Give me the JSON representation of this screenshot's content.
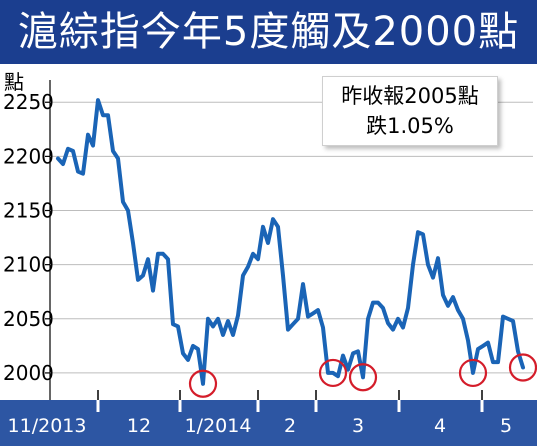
{
  "title": "滬綜指今年5度觸及2000點",
  "unit": "點",
  "annotation": {
    "line1": "昨收報2005點",
    "line2": "跌1.05%"
  },
  "colors": {
    "title_bg": "#1b3e8f",
    "line": "#1a64b6",
    "highlight": "#d41d2a",
    "axis_bar": "#2d56a3"
  },
  "chart_data": {
    "type": "line",
    "title": "滬綜指今年5度觸及2000點",
    "ylabel": "點",
    "ylim": [
      1975,
      2265
    ],
    "yticks": [
      2000,
      2050,
      2100,
      2150,
      2200,
      2250
    ],
    "grid": true,
    "month_labels": [
      "11/2013",
      "12",
      "1/2014",
      "2",
      "3",
      "4",
      "5"
    ],
    "series": [
      {
        "values": [
          2198,
          2193,
          2207,
          2205,
          2186,
          2184,
          2220,
          2210,
          2252,
          2238,
          2238,
          2205,
          2198,
          2158,
          2150,
          2120,
          2086,
          2090,
          2105,
          2076,
          2110,
          2110,
          2105,
          2045,
          2043,
          2018,
          2012,
          2025,
          2022,
          1990,
          2050,
          2043,
          2050,
          2035,
          2048,
          2035,
          2053,
          2090,
          2098,
          2110,
          2105,
          2135,
          2120,
          2142,
          2135,
          2090,
          2040,
          2045,
          2050,
          2082,
          2052,
          2055,
          2058,
          2042,
          2000,
          2000,
          1997,
          2016,
          2003,
          2018,
          2020,
          1996,
          2050,
          2065,
          2065,
          2060,
          2046,
          2040,
          2050,
          2042,
          2060,
          2100,
          2130,
          2128,
          2100,
          2088,
          2106,
          2072,
          2062,
          2070,
          2058,
          2050,
          2030,
          2000,
          2022,
          2025,
          2028,
          2010,
          2010,
          2052,
          2050,
          2048,
          2020,
          2005
        ]
      }
    ],
    "touch_points": [
      29,
      55,
      61,
      83,
      93
    ]
  }
}
